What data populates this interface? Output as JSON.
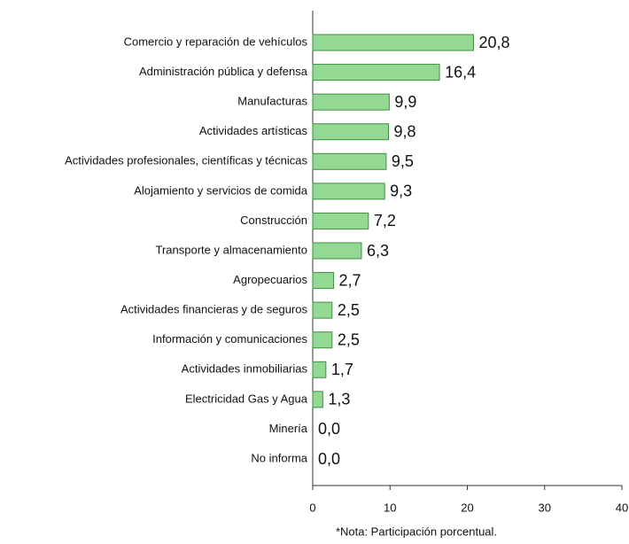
{
  "chart_data": {
    "type": "bar",
    "orientation": "horizontal",
    "categories": [
      "Comercio y reparación de vehículos",
      "Administración pública y defensa",
      "Manufacturas",
      "Actividades  artísticas",
      "Actividades profesionales, científicas y técnicas",
      "Alojamiento y servicios de comida",
      "Construcción",
      "Transporte  y almacenamiento",
      "Agropecuarios",
      "Actividades financieras y de seguros",
      "Información y comunicaciones",
      "Actividades inmobiliarias",
      "Electricidad  Gas y Agua",
      "Minería",
      "No informa"
    ],
    "values": [
      20.8,
      16.4,
      9.9,
      9.8,
      9.5,
      9.3,
      7.2,
      6.3,
      2.7,
      2.5,
      2.5,
      1.7,
      1.3,
      0.0,
      0.0
    ],
    "value_labels": [
      "20,8",
      "16,4",
      "9,9",
      "9,8",
      "9,5",
      "9,3",
      "7,2",
      "6,3",
      "2,7",
      "2,5",
      "2,5",
      "1,7",
      "1,3",
      "0,0",
      "0,0"
    ],
    "color": "#93d993",
    "xlim": [
      0,
      40
    ],
    "xticks": [
      0,
      10,
      20,
      30,
      40
    ],
    "note": "*Nota: Participación porcentual."
  }
}
